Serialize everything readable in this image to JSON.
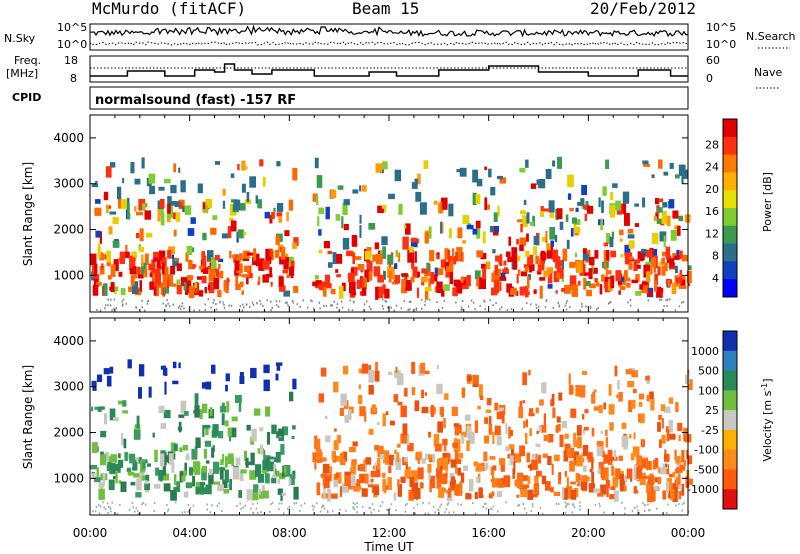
{
  "header": {
    "title": "McMurdo (fitACF)",
    "beam": "Beam 15",
    "date": "20/Feb/2012"
  },
  "left_labels": {
    "nsky": "N.Sky",
    "freq": "Freq.",
    "freq_unit": "[MHz]",
    "cpid": "CPID"
  },
  "right_labels": {
    "nsearch": "N.Search",
    "nave": "Nave"
  },
  "noise_panel": {
    "left_ticks": [
      "10^5",
      "10^0"
    ],
    "right_ticks": [
      "10^5",
      "10^0"
    ]
  },
  "freq_panel": {
    "left_ticks": [
      "18",
      "8"
    ],
    "right_ticks": [
      "60",
      "0"
    ]
  },
  "cpid_text": "normalsound (fast) -157 RF",
  "chart_data": [
    {
      "type": "heatmap",
      "title": "",
      "ylabel": "Slant Range [km]",
      "xlabel": "",
      "ylim": [
        200,
        4500
      ],
      "y_ticks": [
        "1000",
        "2000",
        "3000",
        "4000"
      ],
      "colorbar": {
        "label": "Power [dB]",
        "ticks": [
          "28",
          "24",
          "20",
          "16",
          "12",
          "8",
          "4"
        ],
        "colors": [
          "#e00000",
          "#ff3010",
          "#ff7a00",
          "#ffb000",
          "#e8e000",
          "#7fcc30",
          "#3a9a50",
          "#2a6e8a",
          "#1040c0",
          "#0000ff"
        ]
      },
      "bands": [
        {
          "from_h": 0,
          "to_h": 24,
          "range": [
            650,
            1500
          ],
          "level": "high"
        },
        {
          "from_h": 1,
          "to_h": 18,
          "range": [
            1500,
            2500
          ],
          "level": "medium"
        },
        {
          "from_h": 1,
          "to_h": 3,
          "range": [
            2500,
            3500
          ],
          "level": "low"
        }
      ]
    },
    {
      "type": "heatmap",
      "title": "",
      "ylabel": "Slant Range [km]",
      "xlabel": "Time UT",
      "ylim": [
        200,
        4500
      ],
      "y_ticks": [
        "1000",
        "2000",
        "3000",
        "4000"
      ],
      "x_ticks": [
        "00:00",
        "04:00",
        "08:00",
        "12:00",
        "16:00",
        "20:00",
        "00:00"
      ],
      "colorbar": {
        "label": "Velocity [m s",
        "label_sup": "-1",
        "label_end": "]",
        "ticks": [
          "1000",
          "500",
          "100",
          "25",
          "-25",
          "-100",
          "-500",
          "-1000"
        ],
        "colors": [
          "#1030b0",
          "#3080c0",
          "#2a8a5a",
          "#6fbf3f",
          "#c8c8c0",
          "#ffb000",
          "#ff8a1a",
          "#ff5a10",
          "#e01010"
        ]
      },
      "bands": [
        {
          "from_h": 0,
          "to_h": 8,
          "range": [
            600,
            1300
          ],
          "level": "toward"
        },
        {
          "from_h": 9,
          "to_h": 24,
          "range": [
            700,
            2200
          ],
          "level": "away"
        }
      ]
    }
  ]
}
